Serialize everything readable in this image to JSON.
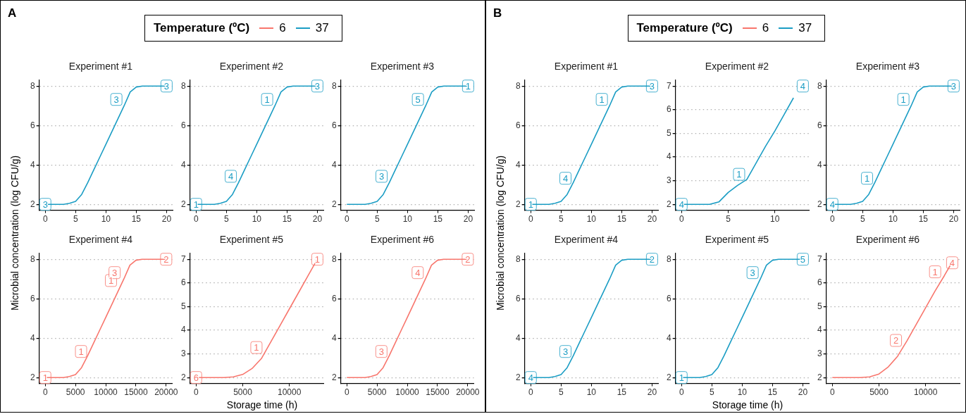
{
  "chart_data": [
    {
      "type": "line",
      "title": "Experiment #1",
      "annotations": [
        "A",
        {
          "text": "3",
          "x": 0,
          "y": 2
        },
        {
          "text": "3",
          "x": 13,
          "y": 7
        },
        {
          "text": "3",
          "x": 20,
          "y": 8
        }
      ],
      "legend_title": "Temperature (ºC)",
      "legend": "top",
      "ylabel": "Microbial concentration (log CFU/g)",
      "xlim": [
        -1,
        21
      ],
      "xticks": [
        0,
        5,
        10,
        15,
        20
      ],
      "ylim": [
        1.7,
        8.3
      ],
      "yticks": [
        2,
        4,
        6,
        8
      ],
      "grid": "y",
      "series": [
        {
          "name": "37",
          "color": "#1b9dc4",
          "x": [
            0,
            3,
            4,
            5,
            6,
            7,
            8,
            9,
            10,
            11,
            12,
            13,
            14,
            15,
            16,
            17,
            20
          ],
          "values": [
            2,
            2,
            2.05,
            2.15,
            2.5,
            3.1,
            3.75,
            4.4,
            5.05,
            5.7,
            6.35,
            7.0,
            7.7,
            7.95,
            8.0,
            8.0,
            8.0
          ]
        }
      ]
    },
    {
      "type": "line",
      "title": "Experiment #2",
      "annotations": [
        {
          "text": "1",
          "x": 0,
          "y": 2
        },
        {
          "text": "4",
          "x": 7,
          "y": 3.1
        },
        {
          "text": "1",
          "x": 13,
          "y": 7
        },
        {
          "text": "3",
          "x": 20,
          "y": 8
        }
      ],
      "xlim": [
        -1,
        21
      ],
      "xticks": [
        0,
        5,
        10,
        15,
        20
      ],
      "ylim": [
        1.7,
        8.3
      ],
      "yticks": [
        2,
        4,
        6,
        8
      ],
      "grid": "y",
      "series": [
        {
          "name": "37",
          "color": "#1b9dc4",
          "x": [
            0,
            3,
            4,
            5,
            6,
            7,
            8,
            9,
            10,
            11,
            12,
            13,
            14,
            15,
            16,
            17,
            20
          ],
          "values": [
            2,
            2,
            2.05,
            2.15,
            2.5,
            3.1,
            3.75,
            4.4,
            5.05,
            5.7,
            6.35,
            7.0,
            7.7,
            7.95,
            8.0,
            8.0,
            8.0
          ]
        }
      ]
    },
    {
      "type": "line",
      "title": "Experiment #3",
      "annotations": [
        {
          "text": "3",
          "x": 7,
          "y": 3.1
        },
        {
          "text": "5",
          "x": 13,
          "y": 7
        },
        {
          "text": "1",
          "x": 20,
          "y": 8
        }
      ],
      "xlim": [
        -1,
        21
      ],
      "xticks": [
        0,
        5,
        10,
        15,
        20
      ],
      "ylim": [
        1.7,
        8.3
      ],
      "yticks": [
        2,
        4,
        6,
        8
      ],
      "grid": "y",
      "series": [
        {
          "name": "37",
          "color": "#1b9dc4",
          "x": [
            0,
            3,
            4,
            5,
            6,
            7,
            8,
            9,
            10,
            11,
            12,
            13,
            14,
            15,
            16,
            17,
            20
          ],
          "values": [
            2,
            2,
            2.05,
            2.15,
            2.5,
            3.1,
            3.75,
            4.4,
            5.05,
            5.7,
            6.35,
            7.0,
            7.7,
            7.95,
            8.0,
            8.0,
            8.0
          ]
        }
      ]
    },
    {
      "type": "line",
      "title": "Experiment #4",
      "annotations": [
        {
          "text": "1",
          "x": 0,
          "y": 2
        },
        {
          "text": "1",
          "x": 7200,
          "y": 3
        },
        {
          "text": "1",
          "x": 12150,
          "y": 6.6
        },
        {
          "text": "3",
          "x": 12750,
          "y": 7
        },
        {
          "text": "2",
          "x": 20000,
          "y": 8
        }
      ],
      "xlim": [
        -1000,
        21000
      ],
      "xticks": [
        0,
        5000,
        10000,
        15000,
        20000
      ],
      "ylim": [
        1.7,
        8.3
      ],
      "yticks": [
        2,
        4,
        6,
        8
      ],
      "grid": "y",
      "series": [
        {
          "name": "6",
          "color": "#f8766d",
          "x": [
            0,
            3000,
            4000,
            5000,
            6000,
            7000,
            8000,
            9000,
            10000,
            11000,
            12000,
            13000,
            14000,
            15000,
            16000,
            17000,
            20000
          ],
          "values": [
            2,
            2,
            2.05,
            2.15,
            2.5,
            3.1,
            3.75,
            4.4,
            5.05,
            5.7,
            6.35,
            7.0,
            7.7,
            7.95,
            8.0,
            8.0,
            8.0
          ]
        }
      ]
    },
    {
      "type": "line",
      "title": "Experiment #5",
      "annotations": [
        {
          "text": "6",
          "x": 0,
          "y": 2
        },
        {
          "text": "1",
          "x": 7300,
          "y": 3
        },
        {
          "text": "1",
          "x": 13000,
          "y": 7
        }
      ],
      "xlabel": "Storage time (h)",
      "xlim": [
        -650,
        13650
      ],
      "xticks": [
        0,
        5000,
        10000
      ],
      "ylim": [
        1.75,
        7.25
      ],
      "yticks": [
        2,
        3,
        4,
        5,
        6,
        7
      ],
      "grid": "y",
      "series": [
        {
          "name": "6",
          "color": "#f8766d",
          "x": [
            0,
            3000,
            4000,
            5000,
            6000,
            7000,
            8000,
            9000,
            10000,
            11000,
            12000,
            13000
          ],
          "values": [
            2,
            2,
            2.03,
            2.13,
            2.38,
            2.8,
            3.5,
            4.2,
            4.9,
            5.6,
            6.3,
            7.0
          ]
        }
      ]
    },
    {
      "type": "line",
      "title": "Experiment #6",
      "annotations": [
        {
          "text": "3",
          "x": 7000,
          "y": 3
        },
        {
          "text": "4",
          "x": 13000,
          "y": 7
        },
        {
          "text": "2",
          "x": 20000,
          "y": 8
        }
      ],
      "xlim": [
        -1000,
        21000
      ],
      "xticks": [
        0,
        5000,
        10000,
        15000,
        20000
      ],
      "ylim": [
        1.7,
        8.3
      ],
      "yticks": [
        2,
        4,
        6,
        8
      ],
      "grid": "y",
      "series": [
        {
          "name": "6",
          "color": "#f8766d",
          "x": [
            0,
            3000,
            4000,
            5000,
            6000,
            7000,
            8000,
            9000,
            10000,
            11000,
            12000,
            13000,
            14000,
            15000,
            16000,
            17000,
            20000
          ],
          "values": [
            2,
            2,
            2.05,
            2.15,
            2.5,
            3.1,
            3.75,
            4.4,
            5.05,
            5.7,
            6.35,
            7.0,
            7.7,
            7.95,
            8.0,
            8.0,
            8.0
          ]
        }
      ]
    },
    {
      "type": "line",
      "title": "Experiment #1",
      "annotations": [
        "B",
        {
          "text": "1",
          "x": 0,
          "y": 2
        },
        {
          "text": "4",
          "x": 7,
          "y": 3
        },
        {
          "text": "1",
          "x": 13,
          "y": 7
        },
        {
          "text": "3",
          "x": 20,
          "y": 8
        }
      ],
      "legend_title": "Temperature (ºC)",
      "legend": "top",
      "ylabel": "Microbial concentration (log CFU/g)",
      "xlim": [
        -1,
        21
      ],
      "xticks": [
        0,
        5,
        10,
        15,
        20
      ],
      "ylim": [
        1.7,
        8.3
      ],
      "yticks": [
        2,
        4,
        6,
        8
      ],
      "grid": "y",
      "series": [
        {
          "name": "37",
          "color": "#1b9dc4",
          "x": [
            0,
            3,
            4,
            5,
            6,
            7,
            8,
            9,
            10,
            11,
            12,
            13,
            14,
            15,
            16,
            17,
            20
          ],
          "values": [
            2,
            2,
            2.05,
            2.15,
            2.5,
            3.1,
            3.75,
            4.4,
            5.05,
            5.7,
            6.35,
            7.0,
            7.7,
            7.95,
            8.0,
            8.0,
            8.0
          ]
        }
      ]
    },
    {
      "type": "line",
      "title": "Experiment #2",
      "annotations": [
        {
          "text": "4",
          "x": 0,
          "y": 2
        },
        {
          "text": "1",
          "x": 7,
          "y": 3
        },
        {
          "text": "4",
          "x": 13,
          "y": 7
        }
      ],
      "xlim": [
        -0.65,
        13.65
      ],
      "xticks": [
        0,
        5,
        10
      ],
      "ylim": [
        1.75,
        7.25
      ],
      "yticks": [
        2,
        3,
        4,
        5,
        6,
        7
      ],
      "grid": "y",
      "series": [
        {
          "name": "37",
          "color": "#1b9dc4",
          "x": [
            0,
            3,
            4,
            5,
            6,
            7,
            8,
            9,
            10,
            11,
            12
          ],
          "values": [
            2,
            2,
            2.1,
            2.5,
            2.8,
            3.05,
            3.75,
            4.45,
            5.1,
            5.8,
            6.5
          ]
        }
      ]
    },
    {
      "type": "line",
      "title": "Experiment #3",
      "annotations": [
        {
          "text": "4",
          "x": 0,
          "y": 2
        },
        {
          "text": "1",
          "x": 7,
          "y": 3
        },
        {
          "text": "1",
          "x": 13,
          "y": 7
        },
        {
          "text": "3",
          "x": 20,
          "y": 8
        }
      ],
      "xlim": [
        -1,
        21
      ],
      "xticks": [
        0,
        5,
        10,
        15,
        20
      ],
      "ylim": [
        1.7,
        8.3
      ],
      "yticks": [
        2,
        4,
        6,
        8
      ],
      "grid": "y",
      "series": [
        {
          "name": "37",
          "color": "#1b9dc4",
          "x": [
            0,
            3,
            4,
            5,
            6,
            7,
            8,
            9,
            10,
            11,
            12,
            13,
            14,
            15,
            16,
            17,
            20
          ],
          "values": [
            2,
            2,
            2.05,
            2.15,
            2.5,
            3.1,
            3.75,
            4.4,
            5.05,
            5.7,
            6.35,
            7.0,
            7.7,
            7.95,
            8.0,
            8.0,
            8.0
          ]
        }
      ]
    },
    {
      "type": "line",
      "title": "Experiment #4",
      "annotations": [
        {
          "text": "4",
          "x": 0,
          "y": 2
        },
        {
          "text": "3",
          "x": 7,
          "y": 3
        },
        {
          "text": "2",
          "x": 20,
          "y": 8
        }
      ],
      "xlim": [
        -1,
        21
      ],
      "xticks": [
        0,
        5,
        10,
        15,
        20
      ],
      "ylim": [
        1.7,
        8.3
      ],
      "yticks": [
        2,
        4,
        6,
        8
      ],
      "grid": "y",
      "series": [
        {
          "name": "37",
          "color": "#1b9dc4",
          "x": [
            0,
            3,
            4,
            5,
            6,
            7,
            8,
            9,
            10,
            11,
            12,
            13,
            14,
            15,
            16,
            17,
            20
          ],
          "values": [
            2,
            2,
            2.05,
            2.15,
            2.5,
            3.1,
            3.75,
            4.4,
            5.05,
            5.7,
            6.35,
            7.0,
            7.7,
            7.95,
            8.0,
            8.0,
            8.0
          ]
        }
      ]
    },
    {
      "type": "line",
      "title": "Experiment #5",
      "annotations": [
        {
          "text": "1",
          "x": 0,
          "y": 2
        },
        {
          "text": "3",
          "x": 13,
          "y": 7
        },
        {
          "text": "5",
          "x": 20,
          "y": 8
        }
      ],
      "xlabel": "Storage time (h)",
      "xlim": [
        -1,
        21
      ],
      "xticks": [
        0,
        5,
        10,
        15,
        20
      ],
      "ylim": [
        1.7,
        8.3
      ],
      "yticks": [
        2,
        4,
        6,
        8
      ],
      "grid": "y",
      "series": [
        {
          "name": "37",
          "color": "#1b9dc4",
          "x": [
            0,
            3,
            4,
            5,
            6,
            7,
            8,
            9,
            10,
            11,
            12,
            13,
            14,
            15,
            16,
            17,
            20
          ],
          "values": [
            2,
            2,
            2.05,
            2.15,
            2.5,
            3.1,
            3.75,
            4.4,
            5.05,
            5.7,
            6.35,
            7.0,
            7.7,
            7.95,
            8.0,
            8.0,
            8.0
          ]
        }
      ]
    },
    {
      "type": "line",
      "title": "Experiment #6",
      "annotations": [
        {
          "text": "2",
          "x": 7650,
          "y": 3.3
        },
        {
          "text": "1",
          "x": 11850,
          "y": 6.2
        },
        {
          "text": "4",
          "x": 12850,
          "y": 6.85
        }
      ],
      "xlim": [
        -650,
        13650
      ],
      "xticks": [
        0,
        5000,
        10000
      ],
      "ylim": [
        1.75,
        7.25
      ],
      "yticks": [
        2,
        3,
        4,
        5,
        6,
        7
      ],
      "grid": "y",
      "series": [
        {
          "name": "6",
          "color": "#f8766d",
          "x": [
            0,
            3000,
            4000,
            5000,
            6000,
            7000,
            8000,
            9000,
            10000,
            11000,
            12000,
            12800
          ],
          "values": [
            2,
            2,
            2.03,
            2.15,
            2.45,
            2.9,
            3.55,
            4.25,
            4.95,
            5.65,
            6.3,
            6.85
          ]
        }
      ]
    }
  ]
}
